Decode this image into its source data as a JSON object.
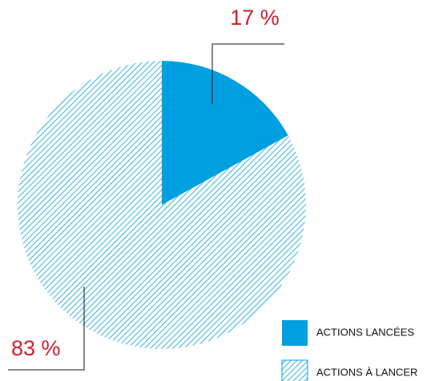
{
  "chart_data": {
    "type": "pie",
    "categories": [
      "ACTIONS LANCÉES",
      "ACTIONS À LANCER"
    ],
    "values": [
      17,
      83
    ],
    "value_labels": [
      "17 %",
      "83 %"
    ],
    "colors": [
      "#009fdf",
      "#009fdf"
    ],
    "hatched": [
      false,
      true
    ],
    "legend": "bottom-right"
  }
}
